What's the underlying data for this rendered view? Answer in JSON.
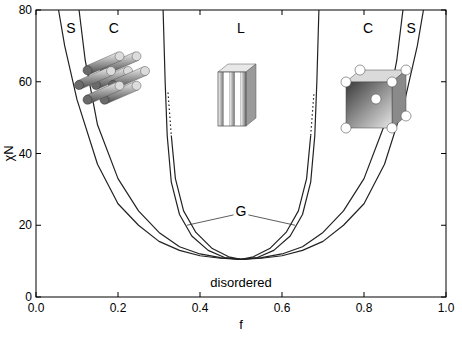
{
  "chart_data": {
    "type": "line",
    "x_label": "f",
    "y_label": "χN",
    "xlim": [
      0,
      1
    ],
    "ylim": [
      0,
      80
    ],
    "xticks": [
      {
        "value": 0,
        "label": "0.0"
      },
      {
        "value": 0.2,
        "label": "0.2"
      },
      {
        "value": 0.4,
        "label": "0.4"
      },
      {
        "value": 0.6,
        "label": "0.6"
      },
      {
        "value": 0.8,
        "label": "0.8"
      },
      {
        "value": 1,
        "label": "1.0"
      }
    ],
    "yticks": [
      0,
      20,
      40,
      60,
      80
    ],
    "series": [
      {
        "color": "#222222",
        "line_style": "solid",
        "x": [
          0.055,
          0.07,
          0.1,
          0.15,
          0.2,
          0.25,
          0.3,
          0.35,
          0.4,
          0.45,
          0.5,
          0.55,
          0.6,
          0.65,
          0.7,
          0.75,
          0.8,
          0.85,
          0.9,
          0.93,
          0.945
        ],
        "values": [
          80,
          70,
          55,
          37,
          26,
          20,
          15.5,
          13,
          11.5,
          10.8,
          10.5,
          10.8,
          11.5,
          13,
          15.5,
          20,
          26,
          37,
          55,
          70,
          80
        ]
      },
      {
        "color": "#222222",
        "line_style": "solid",
        "x": [
          0.105,
          0.12,
          0.15,
          0.2,
          0.25,
          0.3,
          0.35,
          0.4,
          0.45,
          0.5,
          0.55,
          0.6,
          0.65,
          0.7,
          0.75,
          0.8,
          0.85,
          0.88,
          0.895
        ],
        "values": [
          80,
          66,
          48,
          33,
          24,
          18,
          14,
          12,
          11,
          10.5,
          11,
          12,
          14,
          18,
          24,
          33,
          48,
          66,
          80
        ]
      },
      {
        "color": "#222222",
        "line_style": "solid",
        "x": [
          0.31,
          0.315,
          0.32,
          0.33,
          0.35,
          0.38,
          0.42,
          0.46,
          0.5,
          0.54,
          0.58,
          0.62,
          0.65,
          0.67,
          0.68,
          0.685,
          0.69
        ],
        "values": [
          80,
          60,
          45,
          32,
          23,
          17,
          13,
          11,
          10.5,
          11,
          13,
          17,
          23,
          32,
          45,
          60,
          80
        ]
      },
      {
        "color": "#222222",
        "line_style": "solid",
        "x": [
          0.33,
          0.34,
          0.36,
          0.39,
          0.43,
          0.47,
          0.5,
          0.53,
          0.57,
          0.61,
          0.64,
          0.66,
          0.67
        ],
        "values": [
          45,
          33,
          24,
          18,
          13.5,
          11.2,
          10.5,
          11.2,
          13.5,
          18,
          24,
          33,
          45
        ]
      },
      {
        "color": "#222222",
        "line_style": "dotted",
        "x": [
          0.322,
          0.33
        ],
        "values": [
          57,
          45
        ]
      },
      {
        "color": "#222222",
        "line_style": "dotted",
        "x": [
          0.67,
          0.678
        ],
        "values": [
          45,
          57
        ]
      }
    ],
    "annotations": [
      {
        "text": "S",
        "x": 0.085,
        "y": 75
      },
      {
        "text": "C",
        "x": 0.19,
        "y": 75
      },
      {
        "text": "L",
        "x": 0.5,
        "y": 75
      },
      {
        "text": "C",
        "x": 0.81,
        "y": 75
      },
      {
        "text": "S",
        "x": 0.915,
        "y": 75
      },
      {
        "text": "G",
        "x": 0.5,
        "y": 24,
        "targets": [
          [
            0.368,
            20
          ],
          [
            0.632,
            20
          ]
        ]
      },
      {
        "text": "disordered",
        "x": 0.5,
        "y": 4
      }
    ]
  }
}
